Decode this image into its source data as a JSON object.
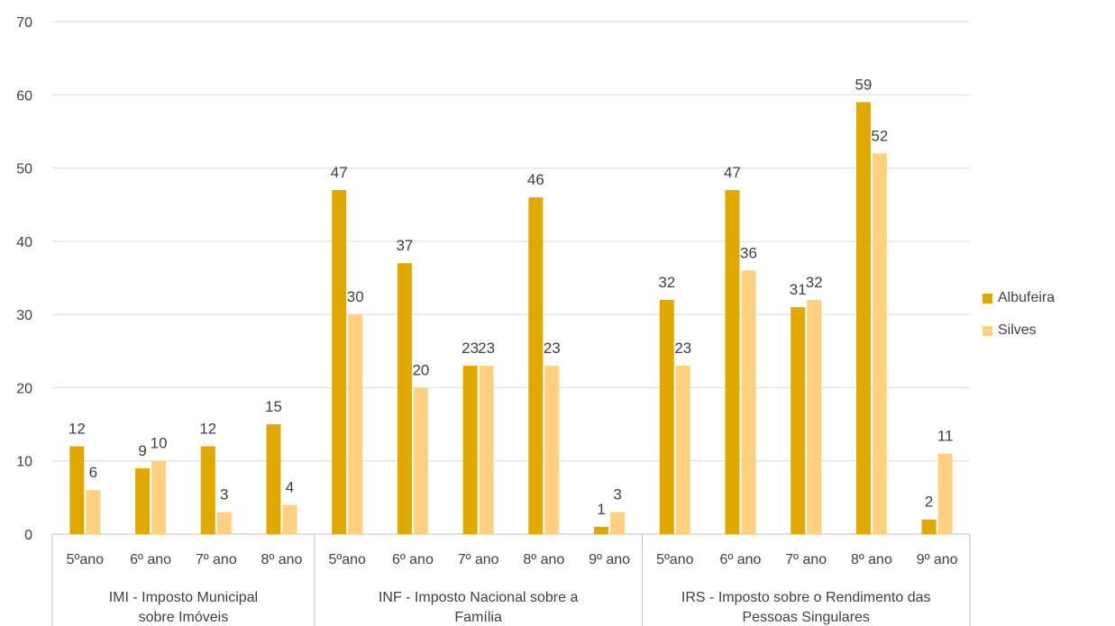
{
  "chart_data": {
    "type": "bar",
    "ylim": [
      0,
      70
    ],
    "yticks": [
      0,
      10,
      20,
      30,
      40,
      50,
      60,
      70
    ],
    "grid": true,
    "legend_position": "right",
    "groups": [
      {
        "label": "IMI - Imposto Municipal sobre Imóveis",
        "categories": [
          "5ºano",
          "6º ano",
          "7º ano",
          "8º ano"
        ]
      },
      {
        "label": "INF - Imposto Nacional sobre a Família",
        "categories": [
          "5ºano",
          "6º ano",
          "7º ano",
          "8º ano",
          "9º ano"
        ]
      },
      {
        "label": "IRS - Imposto sobre o Rendimento das Pessoas Singulares",
        "categories": [
          "5ºano",
          "6º ano",
          "7º ano",
          "8º ano",
          "9º ano"
        ]
      }
    ],
    "series": [
      {
        "name": "Albufeira",
        "color": "#e0a800",
        "values": [
          12,
          9,
          12,
          15,
          47,
          37,
          23,
          46,
          1,
          32,
          47,
          31,
          59,
          2
        ]
      },
      {
        "name": "Silves",
        "color": "#ffd080",
        "values": [
          6,
          10,
          3,
          4,
          30,
          20,
          23,
          23,
          3,
          23,
          36,
          32,
          52,
          11
        ]
      }
    ]
  }
}
